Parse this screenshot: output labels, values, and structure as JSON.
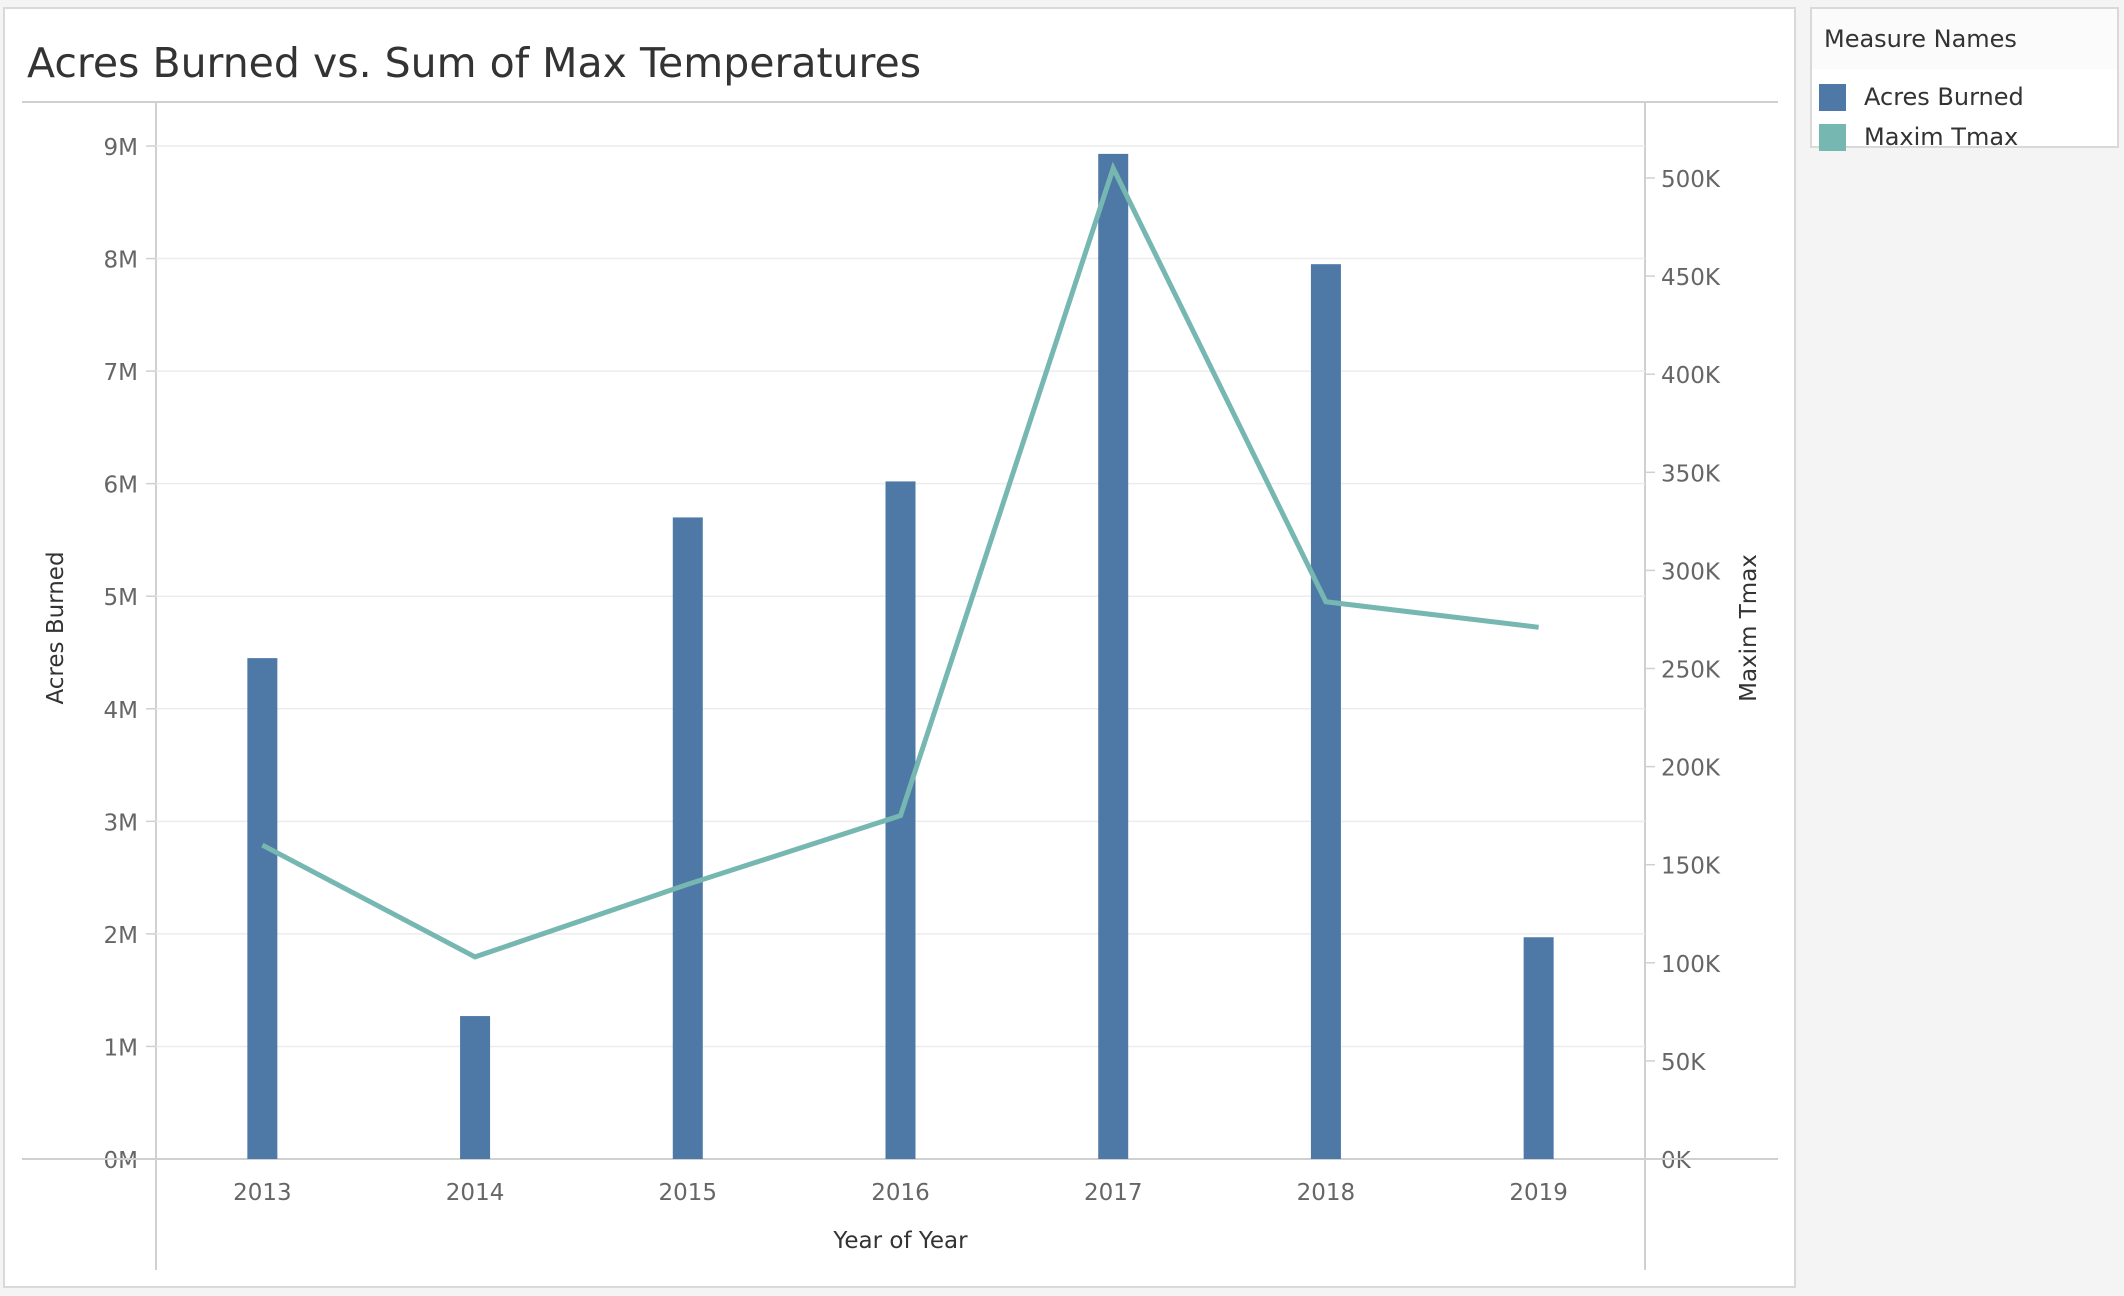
{
  "chart_data": {
    "type": "bar",
    "title": "Acres Burned vs. Sum of Max Temperatures",
    "xlabel": "Year of Year",
    "ylabel": "Acres Burned",
    "y2label": "Maxim Tmax",
    "categories": [
      "2013",
      "2014",
      "2015",
      "2016",
      "2017",
      "2018",
      "2019"
    ],
    "ylim": [
      0,
      9000000
    ],
    "y2lim": [
      0,
      500000
    ],
    "yticks": [
      "0M",
      "1M",
      "2M",
      "3M",
      "4M",
      "5M",
      "6M",
      "7M",
      "8M",
      "9M"
    ],
    "y2ticks": [
      "0K",
      "50K",
      "100K",
      "150K",
      "200K",
      "250K",
      "300K",
      "350K",
      "400K",
      "450K",
      "500K"
    ],
    "grid": true,
    "legend_position": "top-right",
    "series": [
      {
        "name": "Acres Burned",
        "type": "bar",
        "axis": "left",
        "color": "#4e79a7",
        "values": [
          4450000,
          1270000,
          5700000,
          6020000,
          8930000,
          7950000,
          1970000
        ]
      },
      {
        "name": "Maxim Tmax",
        "type": "line",
        "axis": "right",
        "color": "#76b7b2",
        "values": [
          160000,
          103000,
          140000,
          175000,
          505000,
          284000,
          271000
        ]
      }
    ]
  },
  "legend": {
    "title": "Measure Names",
    "items": [
      {
        "label": "Acres Burned",
        "color": "#4e79a7"
      },
      {
        "label": "Maxim Tmax",
        "color": "#76b7b2"
      }
    ]
  }
}
